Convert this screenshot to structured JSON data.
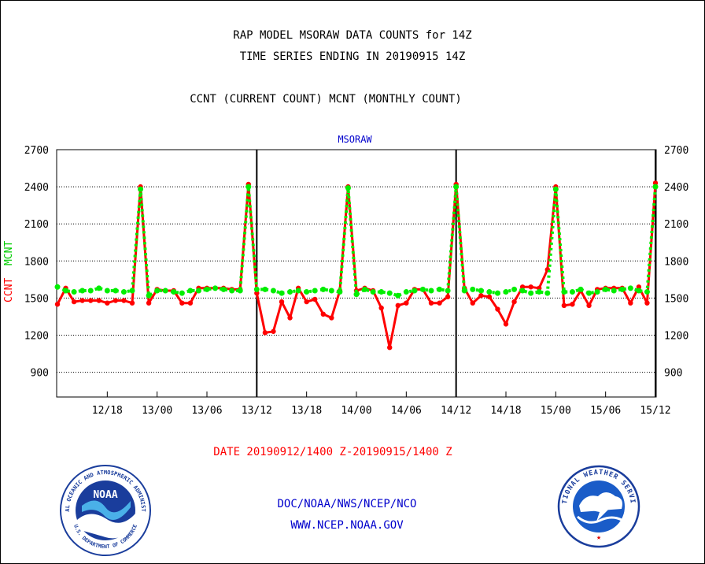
{
  "header": {
    "title_line1": "RAP MODEL MSORAW DATA COUNTS for 14Z",
    "title_line2": "TIME SERIES ENDING IN 20190915 14Z",
    "subtitle": "CCNT (CURRENT COUNT) MCNT (MONTHLY COUNT)"
  },
  "footer": {
    "date_range": "DATE 20190912/1400 Z-20190915/1400 Z",
    "org": "DOC/NOAA/NWS/NCEP/NCO",
    "url": "WWW.NCEP.NOAA.GOV"
  },
  "logos": {
    "noaa_text": "NOAA",
    "noaa_ring_text": "NATIONAL OCEANIC AND ATMOSPHERIC ADMINISTRATION",
    "noaa_ring_bottom": "U.S. DEPARTMENT OF COMMERCE",
    "nws_ring_text": "NATIONAL WEATHER SERVICE"
  },
  "colors": {
    "ccnt": "#ff0000",
    "mcnt": "#00ee00",
    "day_lines": "#000000",
    "title_blue": "#0000cc",
    "date_red": "#ff0000"
  },
  "chart_data": {
    "type": "line",
    "title": "MSORAW",
    "ylabel_ccnt": "CCNT",
    "ylabel_mcnt": "MCNT",
    "ylim": [
      700,
      2700
    ],
    "yticks": [
      900,
      1200,
      1500,
      1800,
      2100,
      2400,
      2700
    ],
    "xtick_labels": [
      "12/18",
      "13/00",
      "13/06",
      "13/12",
      "13/18",
      "14/00",
      "14/06",
      "14/12",
      "14/18",
      "15/00",
      "15/06",
      "15/12"
    ],
    "xtick_index": [
      6,
      12,
      18,
      24,
      30,
      36,
      42,
      48,
      54,
      60,
      66,
      72
    ],
    "day_boundaries_index": [
      24,
      48,
      72
    ],
    "grid": "horizontal dotted",
    "x_count": 73,
    "series": [
      {
        "name": "CCNT",
        "color": "#ff0000",
        "values": [
          1450,
          1580,
          1470,
          1480,
          1480,
          1480,
          1460,
          1480,
          1480,
          1460,
          2400,
          1460,
          1570,
          1560,
          1560,
          1460,
          1460,
          1580,
          1580,
          1580,
          1580,
          1570,
          1570,
          2420,
          1540,
          1220,
          1230,
          1470,
          1340,
          1580,
          1470,
          1490,
          1370,
          1340,
          1560,
          2400,
          1560,
          1580,
          1560,
          1420,
          1100,
          1440,
          1460,
          1570,
          1570,
          1460,
          1460,
          1510,
          2420,
          1580,
          1460,
          1520,
          1510,
          1410,
          1290,
          1470,
          1590,
          1590,
          1580,
          1730,
          2400,
          1440,
          1450,
          1560,
          1440,
          1570,
          1580,
          1580,
          1580,
          1460,
          1590,
          1460,
          2430
        ]
      },
      {
        "name": "MCNT",
        "color": "#00ee00",
        "values": [
          1590,
          1560,
          1550,
          1560,
          1560,
          1580,
          1560,
          1560,
          1550,
          1560,
          2380,
          1520,
          1560,
          1560,
          1550,
          1540,
          1560,
          1560,
          1570,
          1580,
          1570,
          1560,
          1560,
          2400,
          1570,
          1570,
          1560,
          1540,
          1550,
          1560,
          1550,
          1560,
          1570,
          1560,
          1550,
          2390,
          1530,
          1570,
          1550,
          1550,
          1540,
          1520,
          1550,
          1560,
          1570,
          1560,
          1570,
          1560,
          2400,
          1560,
          1570,
          1560,
          1550,
          1540,
          1550,
          1570,
          1560,
          1540,
          1550,
          1540,
          2380,
          1550,
          1550,
          1570,
          1540,
          1550,
          1570,
          1560,
          1570,
          1580,
          1560,
          1550,
          2400
        ]
      }
    ]
  }
}
